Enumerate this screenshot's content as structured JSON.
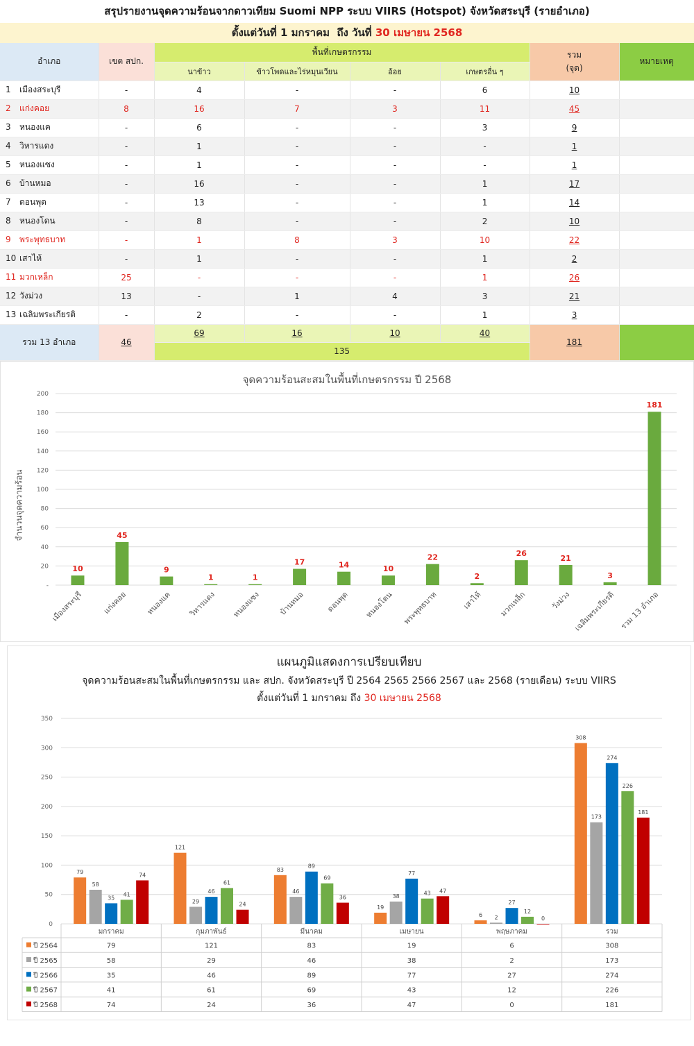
{
  "header": {
    "title": "สรุปรายงานจุดความร้อนจากดาวเทียม Suomi NPP ระบบ VIIRS (Hotspot) จังหวัดสระบุรี (รายอำเภอ)",
    "period_prefix": "ตั้งแต่วันที่ 1 มกราคม  ถึง วันที่ ",
    "period_date": "30 เมษายน 2568"
  },
  "table": {
    "col_district": "อำเภอ",
    "col_zone": "เขต สปก.",
    "col_agri": "พื้นที่เกษตรกรรม",
    "col_rice": "นาข้าว",
    "col_corn": "ข้าวโพดและไร่หมุนเวียน",
    "col_cane": "อ้อย",
    "col_other": "เกษตรอื่น ๆ",
    "col_total_1": "รวม",
    "col_total_2": "(จุด)",
    "col_note": "หมายเหตุ",
    "rows": [
      {
        "num": "1",
        "name": "เมืองสระบุรี",
        "zone": "-",
        "rice": "4",
        "corn": "-",
        "cane": "-",
        "other": "6",
        "total": "10",
        "highlight": false
      },
      {
        "num": "2",
        "name": "แก่งคอย",
        "zone": "8",
        "rice": "16",
        "corn": "7",
        "cane": "3",
        "other": "11",
        "total": "45",
        "highlight": true
      },
      {
        "num": "3",
        "name": "หนองแค",
        "zone": "-",
        "rice": "6",
        "corn": "-",
        "cane": "-",
        "other": "3",
        "total": "9",
        "highlight": false
      },
      {
        "num": "4",
        "name": "วิหารแดง",
        "zone": "-",
        "rice": "1",
        "corn": "-",
        "cane": "-",
        "other": "-",
        "total": "1",
        "highlight": false
      },
      {
        "num": "5",
        "name": "หนองแซง",
        "zone": "-",
        "rice": "1",
        "corn": "-",
        "cane": "-",
        "other": "-",
        "total": "1",
        "highlight": false
      },
      {
        "num": "6",
        "name": "บ้านหมอ",
        "zone": "-",
        "rice": "16",
        "corn": "-",
        "cane": "-",
        "other": "1",
        "total": "17",
        "highlight": false
      },
      {
        "num": "7",
        "name": "ดอนพุด",
        "zone": "-",
        "rice": "13",
        "corn": "-",
        "cane": "-",
        "other": "1",
        "total": "14",
        "highlight": false
      },
      {
        "num": "8",
        "name": "หนองโดน",
        "zone": "-",
        "rice": "8",
        "corn": "-",
        "cane": "-",
        "other": "2",
        "total": "10",
        "highlight": false
      },
      {
        "num": "9",
        "name": "พระพุทธบาท",
        "zone": "-",
        "rice": "1",
        "corn": "8",
        "cane": "3",
        "other": "10",
        "total": "22",
        "highlight": true
      },
      {
        "num": "10",
        "name": "เสาไห้",
        "zone": "-",
        "rice": "1",
        "corn": "-",
        "cane": "-",
        "other": "1",
        "total": "2",
        "highlight": false
      },
      {
        "num": "11",
        "name": "มวกเหล็ก",
        "zone": "25",
        "rice": "-",
        "corn": "-",
        "cane": "-",
        "other": "1",
        "total": "26",
        "highlight": true
      },
      {
        "num": "12",
        "name": "วังม่วง",
        "zone": "13",
        "rice": "-",
        "corn": "1",
        "cane": "4",
        "other": "3",
        "total": "21",
        "highlight": false
      },
      {
        "num": "13",
        "name": "เฉลิมพระเกียรติ",
        "zone": "-",
        "rice": "2",
        "corn": "-",
        "cane": "-",
        "other": "1",
        "total": "3",
        "highlight": false
      }
    ],
    "footer": {
      "label": "รวม 13 อำเภอ",
      "zone": "46",
      "rice": "69",
      "corn": "16",
      "cane": "10",
      "other": "40",
      "agri_sum": "135",
      "total": "181"
    }
  },
  "chart_data": [
    {
      "type": "bar",
      "title": "จุดความร้อนสะสมในพื้นที่เกษตรกรรม ปี 2568",
      "ylabel": "จำนวนจุดความร้อน",
      "ylim": [
        0,
        200
      ],
      "yticks": [
        "-",
        "20",
        "40",
        "60",
        "80",
        "100",
        "120",
        "140",
        "160",
        "180",
        "200"
      ],
      "categories": [
        "เมืองสระบุรี",
        "แก่งคอย",
        "หนองแค",
        "วิหารแดง",
        "หนองแซง",
        "บ้านหมอ",
        "ดอนพุด",
        "หนองโดน",
        "พระพุทธบาท",
        "เสาไห้",
        "มวกเหล็ก",
        "วังม่วง",
        "เฉลิมพระเกียรติ",
        "รวม 13 อำเภอ"
      ],
      "values": [
        10,
        45,
        9,
        1,
        1,
        17,
        14,
        10,
        22,
        2,
        26,
        21,
        3,
        181
      ],
      "bar_color": "#6aaa3e",
      "label_color": "#e0261f",
      "grid": true
    },
    {
      "type": "bar",
      "title": "แผนภูมิแสดงการเปรียบเทียบ",
      "subtitle": "จุดความร้อนสะสมในพื้นที่เกษตรกรรม  และ สปก. จังหวัดสระบุรี  ปี   2564 2565 2566 2567 และ 2568 (รายเดือน)  ระบบ VIIRS",
      "period_prefix": "ตั้งแต่วันที่ 1 มกราคม ถึง ",
      "period_date": "30 เมษายน 2568",
      "ylim": [
        0,
        350
      ],
      "yticks": [
        "0",
        "50",
        "100",
        "150",
        "200",
        "250",
        "300",
        "350"
      ],
      "categories": [
        "มกราคม",
        "กุมภาพันธ์",
        "มีนาคม",
        "เมษายน",
        "พฤษภาคม",
        "รวม"
      ],
      "series": [
        {
          "name": "ปี 2564",
          "color": "#ed7d31",
          "values": [
            79,
            121,
            83,
            19,
            6,
            308
          ]
        },
        {
          "name": "ปี 2565",
          "color": "#a5a5a5",
          "values": [
            58,
            29,
            46,
            38,
            2,
            173
          ]
        },
        {
          "name": "ปี 2566",
          "color": "#0070c0",
          "values": [
            35,
            46,
            89,
            77,
            27,
            274
          ]
        },
        {
          "name": "ปี 2567",
          "color": "#70ad47",
          "values": [
            41,
            61,
            69,
            43,
            12,
            226
          ]
        },
        {
          "name": "ปี 2568",
          "color": "#c00000",
          "values": [
            74,
            24,
            36,
            47,
            0,
            181
          ]
        }
      ],
      "grid": true,
      "data_table": true
    }
  ]
}
